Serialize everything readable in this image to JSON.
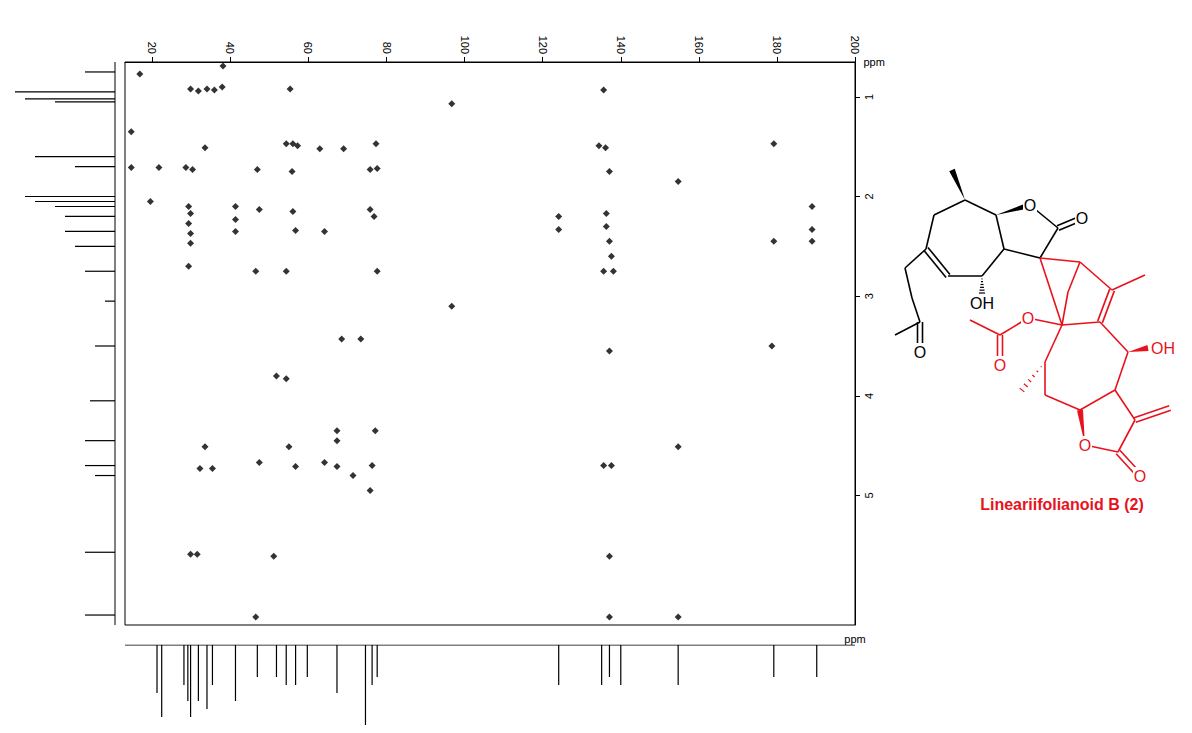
{
  "chart_data": {
    "type": "scatter",
    "xlabel": "ppm",
    "ylabel": "ppm",
    "xlim": [
      13,
      200
    ],
    "xticks": [
      20,
      40,
      60,
      80,
      100,
      120,
      140,
      160,
      180,
      200
    ],
    "ylim": [
      0.65,
      6.3
    ],
    "yticks": [
      1,
      2,
      3,
      4,
      5
    ],
    "grid": false,
    "color": "#000000",
    "marker": "diamond",
    "x": [
      16.8,
      38.1,
      29.8,
      31.8,
      34.0,
      35.9,
      37.9,
      55.3,
      96.7,
      135.6,
      14.6,
      33.5,
      54.3,
      56.0,
      57.2,
      62.9,
      69.0,
      77.3,
      134.4,
      136.1,
      179.2,
      14.6,
      21.7,
      28.6,
      30.3,
      46.9,
      55.8,
      75.8,
      77.6,
      137.1,
      154.7,
      19.5,
      29.3,
      29.8,
      29.3,
      29.8,
      29.8,
      41.3,
      41.3,
      41.3,
      47.4,
      56.0,
      75.8,
      76.8,
      124.1,
      124.1,
      136.3,
      136.3,
      137.1,
      137.6,
      189.0,
      189.0,
      189.0,
      56.7,
      64.1,
      179.2,
      29.3,
      46.5,
      54.3,
      77.6,
      135.6,
      138.1,
      96.7,
      68.5,
      73.4,
      137.1,
      178.7,
      51.8,
      54.3,
      67.3,
      67.3,
      33.5,
      77.1,
      32.2,
      35.4,
      47.4,
      55.0,
      56.7,
      64.1,
      67.3,
      71.4,
      76.3,
      75.8,
      135.6,
      137.6,
      154.7,
      29.8,
      31.5,
      51.1,
      137.1,
      46.5,
      137.1,
      154.7
    ],
    "y": [
      0.77,
      0.69,
      0.92,
      0.94,
      0.92,
      0.93,
      0.9,
      0.92,
      1.07,
      0.93,
      1.35,
      1.51,
      1.47,
      1.47,
      1.49,
      1.52,
      1.52,
      1.47,
      1.49,
      1.51,
      1.47,
      1.71,
      1.71,
      1.71,
      1.73,
      1.73,
      1.75,
      1.73,
      1.72,
      1.75,
      1.85,
      2.05,
      2.1,
      2.17,
      2.27,
      2.37,
      2.47,
      2.1,
      2.23,
      2.35,
      2.13,
      2.15,
      2.13,
      2.2,
      2.2,
      2.33,
      2.17,
      2.3,
      2.45,
      2.6,
      2.1,
      2.33,
      2.45,
      2.34,
      2.35,
      2.45,
      2.7,
      2.75,
      2.75,
      2.75,
      2.75,
      2.75,
      3.1,
      3.43,
      3.43,
      3.55,
      3.5,
      3.8,
      3.83,
      4.35,
      4.45,
      4.51,
      4.35,
      4.73,
      4.73,
      4.67,
      4.51,
      4.71,
      4.67,
      4.71,
      4.8,
      4.7,
      4.95,
      4.7,
      4.7,
      4.51,
      5.59,
      5.59,
      5.61,
      5.61,
      6.22,
      6.22,
      6.22
    ],
    "projections": {
      "heights_lim": [
        0,
        1
      ],
      "carbon": {
        "x": [
          21.2,
          22.4,
          28.1,
          29.1,
          29.8,
          31.8,
          34.0,
          35.4,
          41.3,
          46.9,
          51.8,
          54.3,
          56.7,
          59.7,
          67.3,
          74.6,
          76.3,
          77.6,
          124.1,
          135.1,
          137.1,
          140.0,
          154.7,
          179.2,
          190.2
        ],
        "heights": [
          0.6,
          0.9,
          0.5,
          0.7,
          0.9,
          0.7,
          0.8,
          0.5,
          0.7,
          0.4,
          0.4,
          0.5,
          0.5,
          0.4,
          0.6,
          1.0,
          0.5,
          0.4,
          0.5,
          0.5,
          0.4,
          0.5,
          0.5,
          0.4,
          0.4
        ]
      },
      "proton": {
        "y": [
          0.75,
          0.95,
          1.02,
          1.05,
          1.6,
          1.7,
          2.0,
          2.05,
          2.1,
          2.2,
          2.35,
          2.5,
          2.75,
          3.05,
          3.5,
          4.05,
          4.45,
          4.7,
          4.8,
          5.57,
          6.2
        ],
        "heights": [
          0.3,
          1.0,
          0.9,
          0.6,
          0.8,
          0.4,
          0.9,
          0.8,
          0.6,
          0.5,
          0.5,
          0.4,
          0.3,
          0.1,
          0.2,
          0.25,
          0.3,
          0.3,
          0.2,
          0.3,
          0.3
        ]
      }
    }
  },
  "structure": {
    "name": "Lineariifolianoid B (2)",
    "labels": [
      "O",
      "O",
      "OH",
      "O",
      "O",
      "O",
      "OH",
      "O",
      "O"
    ]
  }
}
